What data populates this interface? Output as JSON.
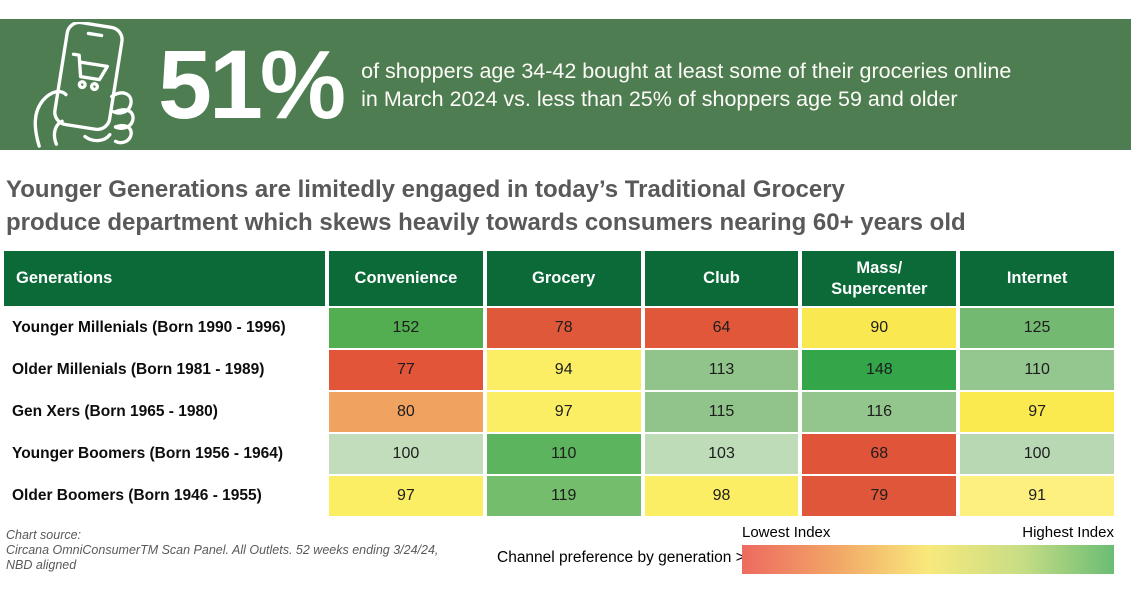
{
  "banner": {
    "stat": "51%",
    "description_line1": "of shoppers age 34-42 bought at least some of their groceries online",
    "description_line2": "in March 2024 vs. less than 25% of shoppers age 59 and older",
    "bg_color": "#4e7d52",
    "icon": "hand-holding-phone-with-shopping-cart-icon"
  },
  "headline": {
    "line1": "Younger Generations are limitedly engaged in today’s Traditional Grocery",
    "line2": "produce department which skews heavily towards consumers nearing 60+ years old",
    "color": "#595959"
  },
  "chart_data": {
    "type": "heatmap",
    "row_header": "Generations",
    "columns": [
      "Convenience",
      "Grocery",
      "Club",
      "Mass/\nSupercenter",
      "Internet"
    ],
    "header_bg": "#0b6a38",
    "rows": [
      {
        "label": "Younger Millenials (Born 1990 - 1996)",
        "values": [
          152,
          78,
          64,
          90,
          125
        ],
        "colors": [
          "#53ae51",
          "#e0583a",
          "#e0573a",
          "#f9e850",
          "#74b972"
        ]
      },
      {
        "label": "Older Millenials (Born 1981 - 1989)",
        "values": [
          77,
          94,
          113,
          148,
          110
        ],
        "colors": [
          "#e25539",
          "#fbee65",
          "#90c48a",
          "#33a64a",
          "#94c690"
        ]
      },
      {
        "label": "Gen Xers (Born 1965 - 1980)",
        "values": [
          80,
          97,
          115,
          116,
          97
        ],
        "colors": [
          "#f0a360",
          "#fbee65",
          "#90c48a",
          "#93c68c",
          "#fae94f"
        ]
      },
      {
        "label": "Younger Boomers (Born 1956 - 1964)",
        "values": [
          100,
          110,
          103,
          68,
          100
        ],
        "colors": [
          "#c2ddbc",
          "#5cb55e",
          "#bedcb8",
          "#e0543a",
          "#b8d8b4"
        ]
      },
      {
        "label": "Older Boomers (Born 1946 - 1955)",
        "values": [
          97,
          119,
          98,
          79,
          91
        ],
        "colors": [
          "#fbee65",
          "#74bd6c",
          "#fbee65",
          "#e0563a",
          "#fdf07e"
        ]
      }
    ],
    "legend_position": "bottom-right"
  },
  "footer": {
    "source_label": "Chart source:",
    "source_line1": "Circana OmniConsumerTM Scan Panel. All Outlets. 52 weeks ending 3/24/24,",
    "source_line2": "NBD aligned",
    "note": "Channel preference by generation >"
  },
  "legend": {
    "low_label": "Lowest Index",
    "high_label": "Highest Index",
    "gradient": [
      "#ed6a60",
      "#f2a566",
      "#f8e97c",
      "#c8dd85",
      "#6abd74"
    ]
  }
}
